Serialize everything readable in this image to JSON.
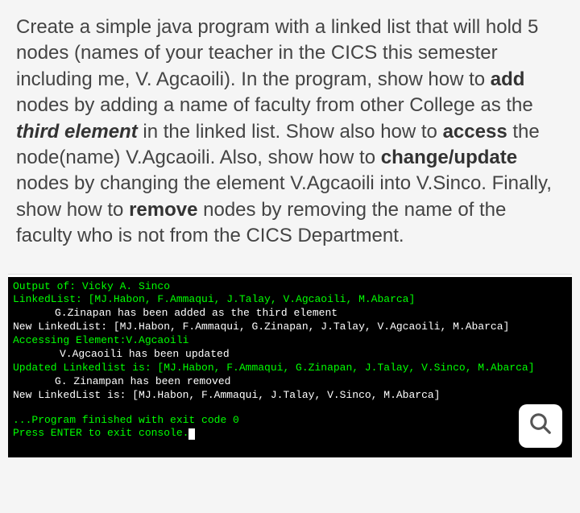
{
  "instruction": {
    "parts": [
      {
        "text": "Create a simple java program with a linked list that will hold 5 nodes (names of your teacher in the CICS this semester including me, V. Agcaoili). In the program, show how to ",
        "style": "normal"
      },
      {
        "text": "add",
        "style": "bold"
      },
      {
        "text": " nodes by adding a name of faculty from other College as the ",
        "style": "normal"
      },
      {
        "text": "third element",
        "style": "bold-italic"
      },
      {
        "text": " in the linked list. Show also how to ",
        "style": "normal"
      },
      {
        "text": "access",
        "style": "bold"
      },
      {
        "text": " the node(name) V.Agcaoili. Also, show how to ",
        "style": "normal"
      },
      {
        "text": "change/update",
        "style": "bold"
      },
      {
        "text": " nodes by changing the element V.Agcaoili into V.Sinco. Finally, show how to ",
        "style": "normal"
      },
      {
        "text": "remove",
        "style": "bold"
      },
      {
        "text": " nodes by removing the name of the faculty who is not from the CICS Department.",
        "style": "normal"
      }
    ]
  },
  "console": {
    "lines": [
      {
        "text": "Output of: Vicky A. Sinco",
        "color": "green",
        "indent": ""
      },
      {
        "text": "LinkedList: [MJ.Habon, F.Ammaqui, J.Talay, V.Agcaoili, M.Abarca]",
        "color": "green",
        "indent": ""
      },
      {
        "text": "G.Zinapan has been added as the third element",
        "color": "white",
        "indent": "indent1"
      },
      {
        "text": "New LinkedList: [MJ.Habon, F.Ammaqui, G.Zinapan, J.Talay, V.Agcaoili, M.Abarca]",
        "color": "white",
        "indent": ""
      },
      {
        "text": "Accessing Element:V.Agcaoili",
        "color": "green",
        "indent": ""
      },
      {
        "text": "V.Agcaoili has been updated",
        "color": "white",
        "indent": "indent2"
      },
      {
        "text": "Updated Linkedlist is: [MJ.Habon, F.Ammaqui, G.Zinapan, J.Talay, V.Sinco, M.Abarca]",
        "color": "green",
        "indent": ""
      },
      {
        "text": "G. Zinampan has been removed",
        "color": "white",
        "indent": "indent1"
      },
      {
        "text": "New LinkedList is: [MJ.Habon, F.Ammaqui, J.Talay, V.Sinco, M.Abarca]",
        "color": "white",
        "indent": ""
      }
    ],
    "footer_line1": "...Program finished with exit code 0",
    "footer_line2": "Press ENTER to exit console."
  },
  "zoom": {
    "icon_name": "magnify-icon"
  }
}
